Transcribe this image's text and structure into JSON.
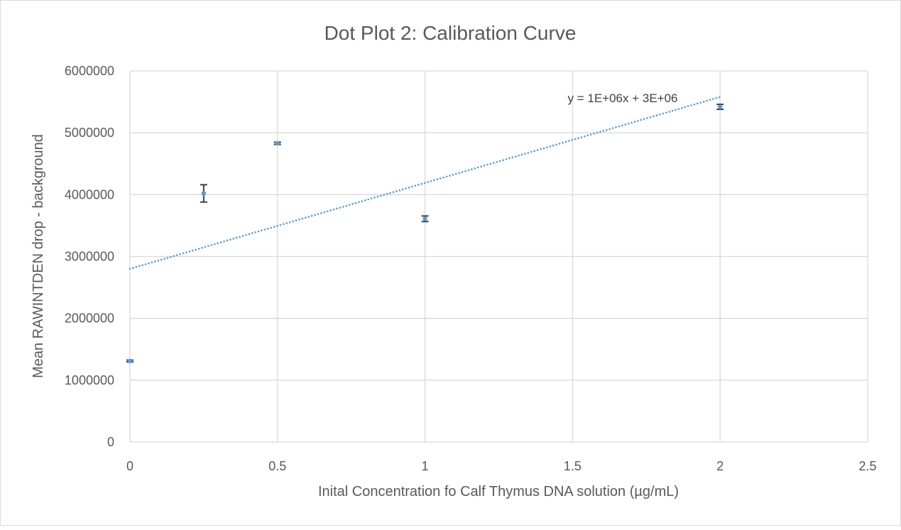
{
  "chart_data": {
    "type": "scatter",
    "title": "Dot Plot 2: Calibration Curve",
    "xlabel": "Inital Concentration fo Calf Thymus DNA solution (µg/mL)",
    "ylabel": "Mean RAWINTDEN drop - background",
    "xlim": [
      0,
      2.5
    ],
    "ylim": [
      0,
      6000000
    ],
    "x_ticks": [
      0,
      0.5,
      1,
      1.5,
      2,
      2.5
    ],
    "x_tick_labels": [
      "0",
      "0.5",
      "1",
      "1.5",
      "2",
      "2.5"
    ],
    "y_ticks": [
      0,
      1000000,
      2000000,
      3000000,
      4000000,
      5000000,
      6000000
    ],
    "y_tick_labels": [
      "0",
      "1000000",
      "2000000",
      "3000000",
      "4000000",
      "5000000",
      "6000000"
    ],
    "grid": true,
    "series": [
      {
        "name": "Mean RAWINTDEN",
        "color": "#5b9bd5",
        "x": [
          0,
          0.25,
          0.5,
          1,
          2
        ],
        "y": [
          1310000,
          4020000,
          4830000,
          3610000,
          5420000
        ],
        "error": [
          15000,
          140000,
          18000,
          45000,
          40000
        ]
      }
    ],
    "trendline": {
      "type": "linear",
      "slope": 1390000,
      "intercept": 2800000,
      "x_range": [
        0,
        2
      ],
      "color": "#5b9bd5",
      "label": "y = 1E+06x + 3E+06"
    },
    "colors": {
      "grid": "#d9d9d9",
      "text": "#595959",
      "errorbar": "#404040"
    }
  }
}
